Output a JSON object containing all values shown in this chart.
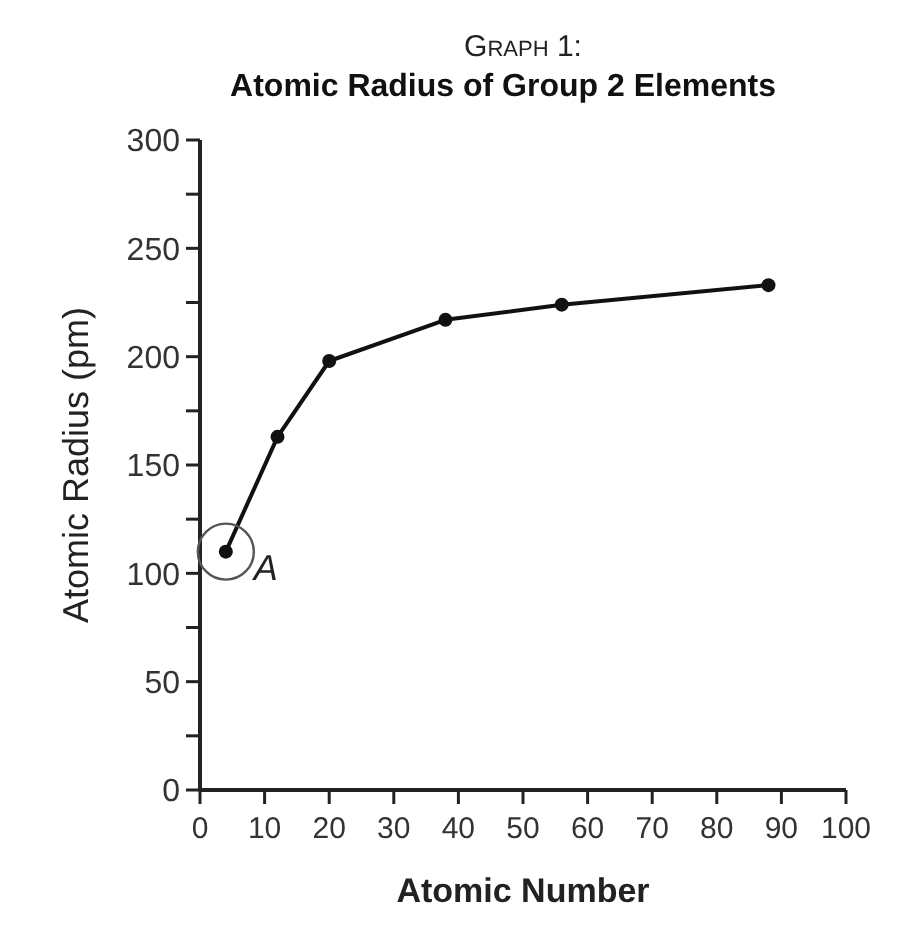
{
  "chart_data": {
    "type": "line",
    "title": "Graph 1:",
    "subtitle": "Atomic Radius of Group 2 Elements",
    "xlabel": "Atomic Number",
    "ylabel": "Atomic Radius (pm)",
    "x": [
      4,
      12,
      20,
      38,
      56,
      88
    ],
    "series": [
      {
        "color": "#111111",
        "values": [
          110,
          163,
          198,
          217,
          224,
          233
        ]
      }
    ],
    "xlim": [
      0,
      100
    ],
    "xticks": [
      0,
      10,
      20,
      30,
      40,
      50,
      60,
      70,
      80,
      90,
      100
    ],
    "ylim": [
      0,
      300
    ],
    "yticks": [
      0,
      {
        "value": 25,
        "label": null
      },
      50,
      {
        "value": 75,
        "label": null
      },
      100,
      {
        "value": 125,
        "label": null
      },
      150,
      {
        "value": 175,
        "label": null
      },
      200,
      {
        "value": 225,
        "label": null
      },
      250,
      {
        "value": 275,
        "label": null
      },
      300
    ],
    "marker": "circle",
    "line_style": "solid",
    "grid": false,
    "annotations": [
      {
        "text": "A",
        "x": 4,
        "y": 110
      }
    ]
  }
}
